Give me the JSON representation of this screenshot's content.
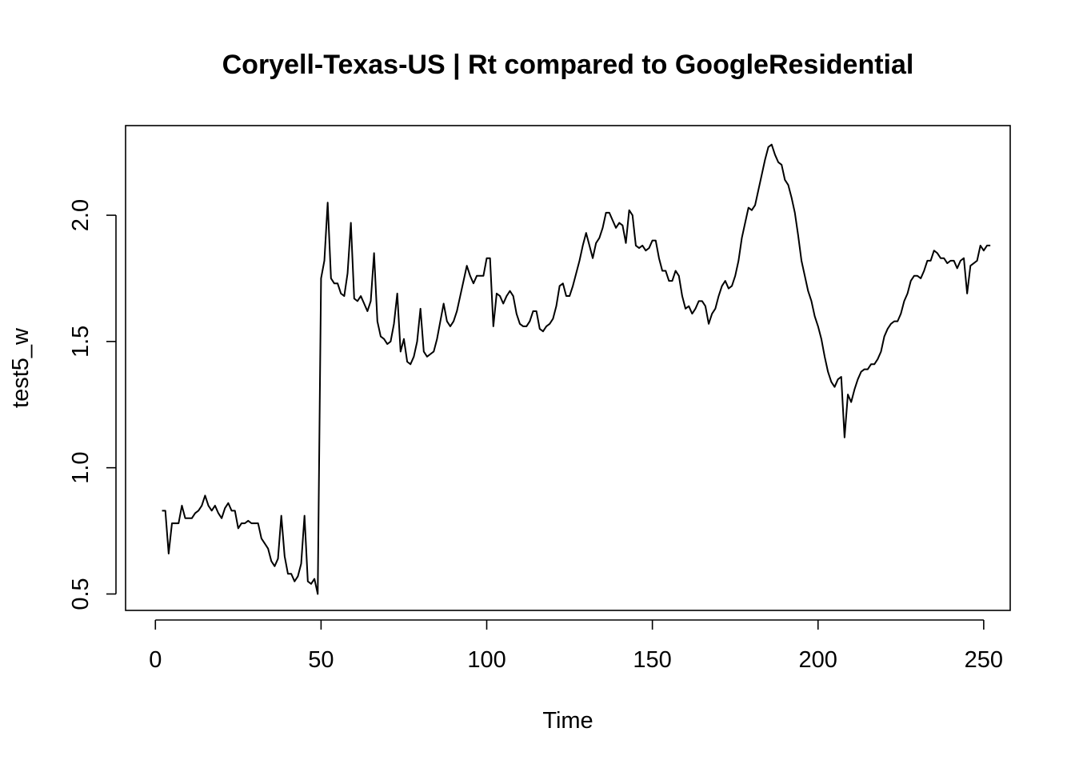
{
  "chart_data": {
    "type": "line",
    "title": "Coryell-Texas-US | Rt compared to GoogleResidential",
    "xlabel": "Time",
    "ylabel": "test5_w",
    "xlim": [
      -9,
      258
    ],
    "ylim": [
      0.435,
      2.355
    ],
    "x_ticks": [
      0,
      50,
      100,
      150,
      200,
      250
    ],
    "y_ticks": [
      0.5,
      1.0,
      1.5,
      2.0
    ],
    "x_tick_labels": [
      "0",
      "50",
      "100",
      "150",
      "200",
      "250"
    ],
    "y_tick_labels": [
      "0.5",
      "1.0",
      "1.5",
      "2.0"
    ],
    "grid": false,
    "series": [
      {
        "color": "#000000",
        "x_start": 2,
        "values": [
          0.83,
          0.83,
          0.66,
          0.78,
          0.78,
          0.78,
          0.85,
          0.8,
          0.8,
          0.8,
          0.82,
          0.83,
          0.85,
          0.89,
          0.85,
          0.83,
          0.85,
          0.82,
          0.8,
          0.84,
          0.86,
          0.83,
          0.83,
          0.76,
          0.78,
          0.78,
          0.79,
          0.78,
          0.78,
          0.78,
          0.72,
          0.7,
          0.68,
          0.63,
          0.61,
          0.64,
          0.81,
          0.65,
          0.58,
          0.58,
          0.55,
          0.57,
          0.62,
          0.81,
          0.55,
          0.54,
          0.56,
          0.5,
          1.75,
          1.82,
          2.05,
          1.75,
          1.73,
          1.73,
          1.69,
          1.68,
          1.77,
          1.97,
          1.67,
          1.66,
          1.68,
          1.65,
          1.62,
          1.66,
          1.85,
          1.58,
          1.52,
          1.51,
          1.49,
          1.5,
          1.57,
          1.69,
          1.46,
          1.51,
          1.42,
          1.41,
          1.44,
          1.5,
          1.63,
          1.46,
          1.44,
          1.45,
          1.46,
          1.51,
          1.58,
          1.65,
          1.58,
          1.56,
          1.58,
          1.62,
          1.68,
          1.74,
          1.8,
          1.76,
          1.73,
          1.76,
          1.76,
          1.76,
          1.83,
          1.83,
          1.56,
          1.69,
          1.68,
          1.65,
          1.68,
          1.7,
          1.68,
          1.61,
          1.57,
          1.56,
          1.56,
          1.58,
          1.62,
          1.62,
          1.55,
          1.54,
          1.56,
          1.57,
          1.59,
          1.64,
          1.72,
          1.73,
          1.68,
          1.68,
          1.72,
          1.77,
          1.82,
          1.88,
          1.93,
          1.88,
          1.83,
          1.89,
          1.91,
          1.95,
          2.01,
          2.01,
          1.98,
          1.95,
          1.97,
          1.96,
          1.89,
          2.02,
          2.0,
          1.88,
          1.87,
          1.88,
          1.86,
          1.87,
          1.9,
          1.9,
          1.83,
          1.78,
          1.78,
          1.74,
          1.74,
          1.78,
          1.76,
          1.68,
          1.63,
          1.64,
          1.61,
          1.63,
          1.66,
          1.66,
          1.64,
          1.57,
          1.61,
          1.63,
          1.68,
          1.72,
          1.74,
          1.71,
          1.72,
          1.76,
          1.82,
          1.91,
          1.97,
          2.03,
          2.02,
          2.04,
          2.1,
          2.16,
          2.22,
          2.27,
          2.28,
          2.24,
          2.21,
          2.2,
          2.14,
          2.12,
          2.07,
          2.01,
          1.92,
          1.82,
          1.76,
          1.7,
          1.66,
          1.6,
          1.56,
          1.51,
          1.44,
          1.38,
          1.34,
          1.32,
          1.35,
          1.36,
          1.12,
          1.29,
          1.26,
          1.31,
          1.35,
          1.38,
          1.39,
          1.39,
          1.41,
          1.41,
          1.43,
          1.46,
          1.52,
          1.55,
          1.57,
          1.58,
          1.58,
          1.61,
          1.66,
          1.69,
          1.74,
          1.76,
          1.76,
          1.75,
          1.78,
          1.82,
          1.82,
          1.86,
          1.85,
          1.83,
          1.83,
          1.81,
          1.82,
          1.82,
          1.79,
          1.82,
          1.83,
          1.69,
          1.8,
          1.81,
          1.82,
          1.88,
          1.86,
          1.88,
          1.88
        ]
      }
    ]
  }
}
